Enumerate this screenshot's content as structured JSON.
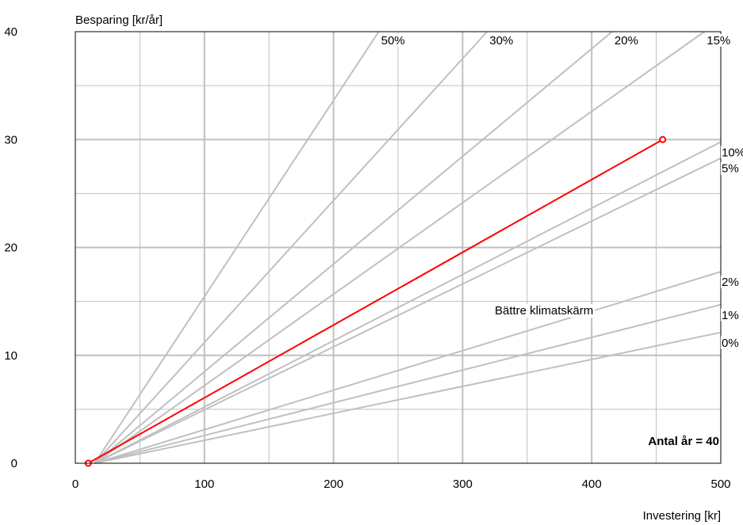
{
  "chart_data": {
    "type": "line",
    "ylabel": "Besparing [kr/år]",
    "xlabel": "Investering [kr]",
    "xlim": [
      0,
      500
    ],
    "ylim": [
      0,
      40
    ],
    "x_ticks": [
      "0",
      "100",
      "200",
      "300",
      "400",
      "500"
    ],
    "y_ticks": [
      "0",
      "10",
      "20",
      "30",
      "40"
    ],
    "grid": true,
    "x_offset": 15,
    "reference_lines": [
      {
        "label": "50%",
        "slope": 0.1818
      },
      {
        "label": "30%",
        "slope": 0.1316
      },
      {
        "label": "20%",
        "slope": 0.0998
      },
      {
        "label": "15%",
        "slope": 0.0847
      },
      {
        "label": "10%",
        "slope": 0.0614
      },
      {
        "label": "5%",
        "slope": 0.0583
      },
      {
        "label": "2%",
        "slope": 0.0366
      },
      {
        "label": "1%",
        "slope": 0.0303
      },
      {
        "label": "0%",
        "slope": 0.025
      }
    ],
    "series": [
      {
        "name": "Bättre klimatskärm",
        "color": "#ff0000",
        "points": [
          [
            10,
            0
          ],
          [
            455,
            30
          ]
        ]
      }
    ],
    "annotation": "Antal år = 40",
    "colors": {
      "reference": "#c0c0c0",
      "grid": "#c0c0c0",
      "series": "#ff0000"
    }
  }
}
